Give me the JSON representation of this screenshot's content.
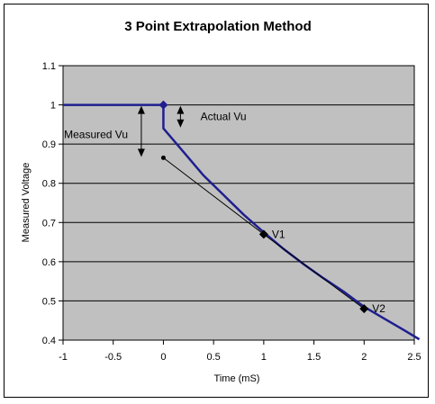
{
  "chart_data": {
    "type": "line",
    "title": "3 Point Extrapolation Method",
    "xlabel": "Time (mS)",
    "ylabel": "Measured Voltage",
    "xlim": [
      -1,
      2.5
    ],
    "ylim": [
      0.4,
      1.1
    ],
    "x_ticks": [
      "-1",
      "-0.5",
      "0",
      "0.5",
      "1",
      "1.5",
      "2",
      "2.5"
    ],
    "y_ticks": [
      "0.4",
      "0.5",
      "0.6",
      "0.7",
      "0.8",
      "0.9",
      "1",
      "1.1"
    ],
    "grid": true,
    "plot_background": "#c0c0c0",
    "series": [
      {
        "color": "#1f1f8f",
        "points": [
          [
            -1,
            1.0
          ],
          [
            0,
            1.0
          ],
          [
            0,
            0.94
          ],
          [
            0.2,
            0.88
          ],
          [
            0.4,
            0.82
          ],
          [
            0.6,
            0.77
          ],
          [
            0.8,
            0.72
          ],
          [
            1.0,
            0.675
          ],
          [
            1.2,
            0.632
          ],
          [
            1.4,
            0.593
          ],
          [
            1.6,
            0.557
          ],
          [
            1.8,
            0.523
          ],
          [
            2.0,
            0.485
          ],
          [
            2.2,
            0.455
          ],
          [
            2.4,
            0.425
          ],
          [
            2.55,
            0.402
          ]
        ]
      },
      {
        "color": "#000000",
        "points": [
          [
            0,
            0.865
          ],
          [
            1,
            0.67
          ],
          [
            2,
            0.48
          ]
        ]
      }
    ],
    "markers": [
      {
        "x": 0,
        "y": 1.0,
        "shape": "diamond",
        "color": "#1f1f8f"
      },
      {
        "x": 1,
        "y": 0.67,
        "shape": "diamond",
        "color": "#000000",
        "label": "V1"
      },
      {
        "x": 2,
        "y": 0.48,
        "shape": "diamond",
        "color": "#000000",
        "label": "V2"
      },
      {
        "x": 0,
        "y": 0.865,
        "shape": "dot",
        "color": "#000000"
      }
    ],
    "annotations": [
      {
        "text": "Actual Vu",
        "from_y": 0.94,
        "to_y": 1.0
      },
      {
        "text": "Measured Vu",
        "from_y": 0.865,
        "to_y": 1.0
      }
    ]
  }
}
